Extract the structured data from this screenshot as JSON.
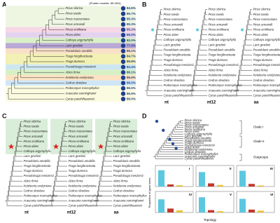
{
  "panels": [
    "A",
    "B",
    "C",
    "D"
  ],
  "panel_a": {
    "header": "(Protein models: 85.16%)",
    "rows": [
      {
        "species": "Pinus sibirica",
        "value": "84.5%",
        "band": "#eef6e2"
      },
      {
        "species": "Pinus taeda",
        "value": "85.7%",
        "band": "#eef6e2"
      },
      {
        "species": "Pinus massoniana",
        "value": "85.3%",
        "band": "#eef6e2"
      },
      {
        "species": "Pinus armandii",
        "value": "85.3%",
        "band": "#eef6e2"
      },
      {
        "species": "Picea smithiana",
        "value": "85.2%",
        "band": "#f6d7e6"
      },
      {
        "species": "Picea abies",
        "value": "86.0%",
        "band": "#e3d3ef"
      },
      {
        "species": "Cathaya argyrophylla",
        "value": "82.0%",
        "band": "#d9efc6"
      },
      {
        "species": "Larix gmelinii",
        "value": "77.9%",
        "band": "#b9a9d6"
      },
      {
        "species": "Pseudolarix amabilis",
        "value": "85.1%",
        "band": "#f9e0c8"
      },
      {
        "species": "Tsuga longibracteata",
        "value": "84.7%",
        "band": "#f2f0b3"
      },
      {
        "species": "Tsuga dumosa",
        "value": "86.8%",
        "band": "#f2f0b3"
      },
      {
        "species": "Pseudotsuga menziesii",
        "value": "84.4%",
        "band": "#cde7f2"
      },
      {
        "species": "Abies firma",
        "value": "86.1%",
        "band": "#d8f0c6"
      },
      {
        "species": "Keteleeria evelyniana",
        "value": "86.6%",
        "band": "#fde3c3"
      },
      {
        "species": "Cedrus deodara",
        "value": "86.0%",
        "band": "#cfe6f7"
      },
      {
        "species": "Podocarpus macrophyllus",
        "value": "86.5%",
        "band": "#fbfbe0"
      },
      {
        "species": "Araucaria cunninghamii",
        "value": "86.9%",
        "band": "#fbfbe0"
      },
      {
        "species": "Cycas panzhihuaensis",
        "value": "86.0%",
        "band": "#fbfbe0"
      }
    ]
  },
  "tree_labels": [
    "nt",
    "nt12",
    "aa"
  ],
  "panel_d": {
    "clades": [
      "Clade I",
      "Clade II",
      "Outgroups"
    ],
    "topologies": [
      "I",
      "II",
      "III",
      "IV",
      "V",
      "VI"
    ],
    "y_label": "Proportion of gene trees",
    "x_label": "Topology",
    "bar_colors": [
      "#5bc8e0",
      "#c0392b",
      "#e8c43a"
    ],
    "ylim": [
      0,
      0.8
    ],
    "bars": [
      [
        0.62,
        0.08,
        0.05
      ],
      [
        0.55,
        0.12,
        0.06
      ],
      [
        0.6,
        0.1,
        0.04
      ],
      [
        0.5,
        0.15,
        0.08
      ],
      [
        0.58,
        0.09,
        0.05
      ],
      [
        0.52,
        0.11,
        0.07
      ]
    ]
  }
}
